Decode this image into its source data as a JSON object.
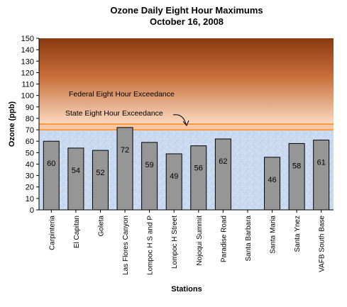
{
  "chart_data": {
    "type": "bar",
    "title": "Ozone Daily Eight Hour Maximums",
    "subtitle": "October 16, 2008",
    "xlabel": "Stations",
    "ylabel": "Ozone (ppb)",
    "ylim": [
      0,
      150
    ],
    "yticks": [
      0,
      10,
      20,
      30,
      40,
      50,
      60,
      70,
      80,
      90,
      100,
      110,
      120,
      130,
      140,
      150
    ],
    "grid": false,
    "categories": [
      "Carpinteria",
      "El Capitan",
      "Goleta",
      "Las Flores Canyon",
      "Lompoc H S and P",
      "Lompoc H Street",
      "Nojoqui Summit",
      "Paradise Road",
      "Santa Barbara",
      "Santa Maria",
      "Santa Ynez",
      "VAFB South Base"
    ],
    "values": [
      60,
      54,
      52,
      72,
      59,
      49,
      56,
      62,
      null,
      46,
      58,
      61
    ],
    "data_labels": [
      "60",
      "54",
      "52",
      "72",
      "59",
      "49",
      "56",
      "62",
      "",
      "46",
      "58",
      "61"
    ],
    "thresholds": [
      {
        "label": "Federal Eight Hour Exceedance",
        "value": 75
      },
      {
        "label": "State Eight Hour Exceedance",
        "value": 70
      }
    ],
    "colors": {
      "bar_fill": "#969696",
      "bar_stroke": "#000000",
      "bg_low": "#c9d9f0",
      "bg_high_top": "#8a3a12",
      "bg_high_bottom": "#fbd9c2",
      "band": "#f7c7a6",
      "threshold_line": "#ff9a3c"
    }
  }
}
